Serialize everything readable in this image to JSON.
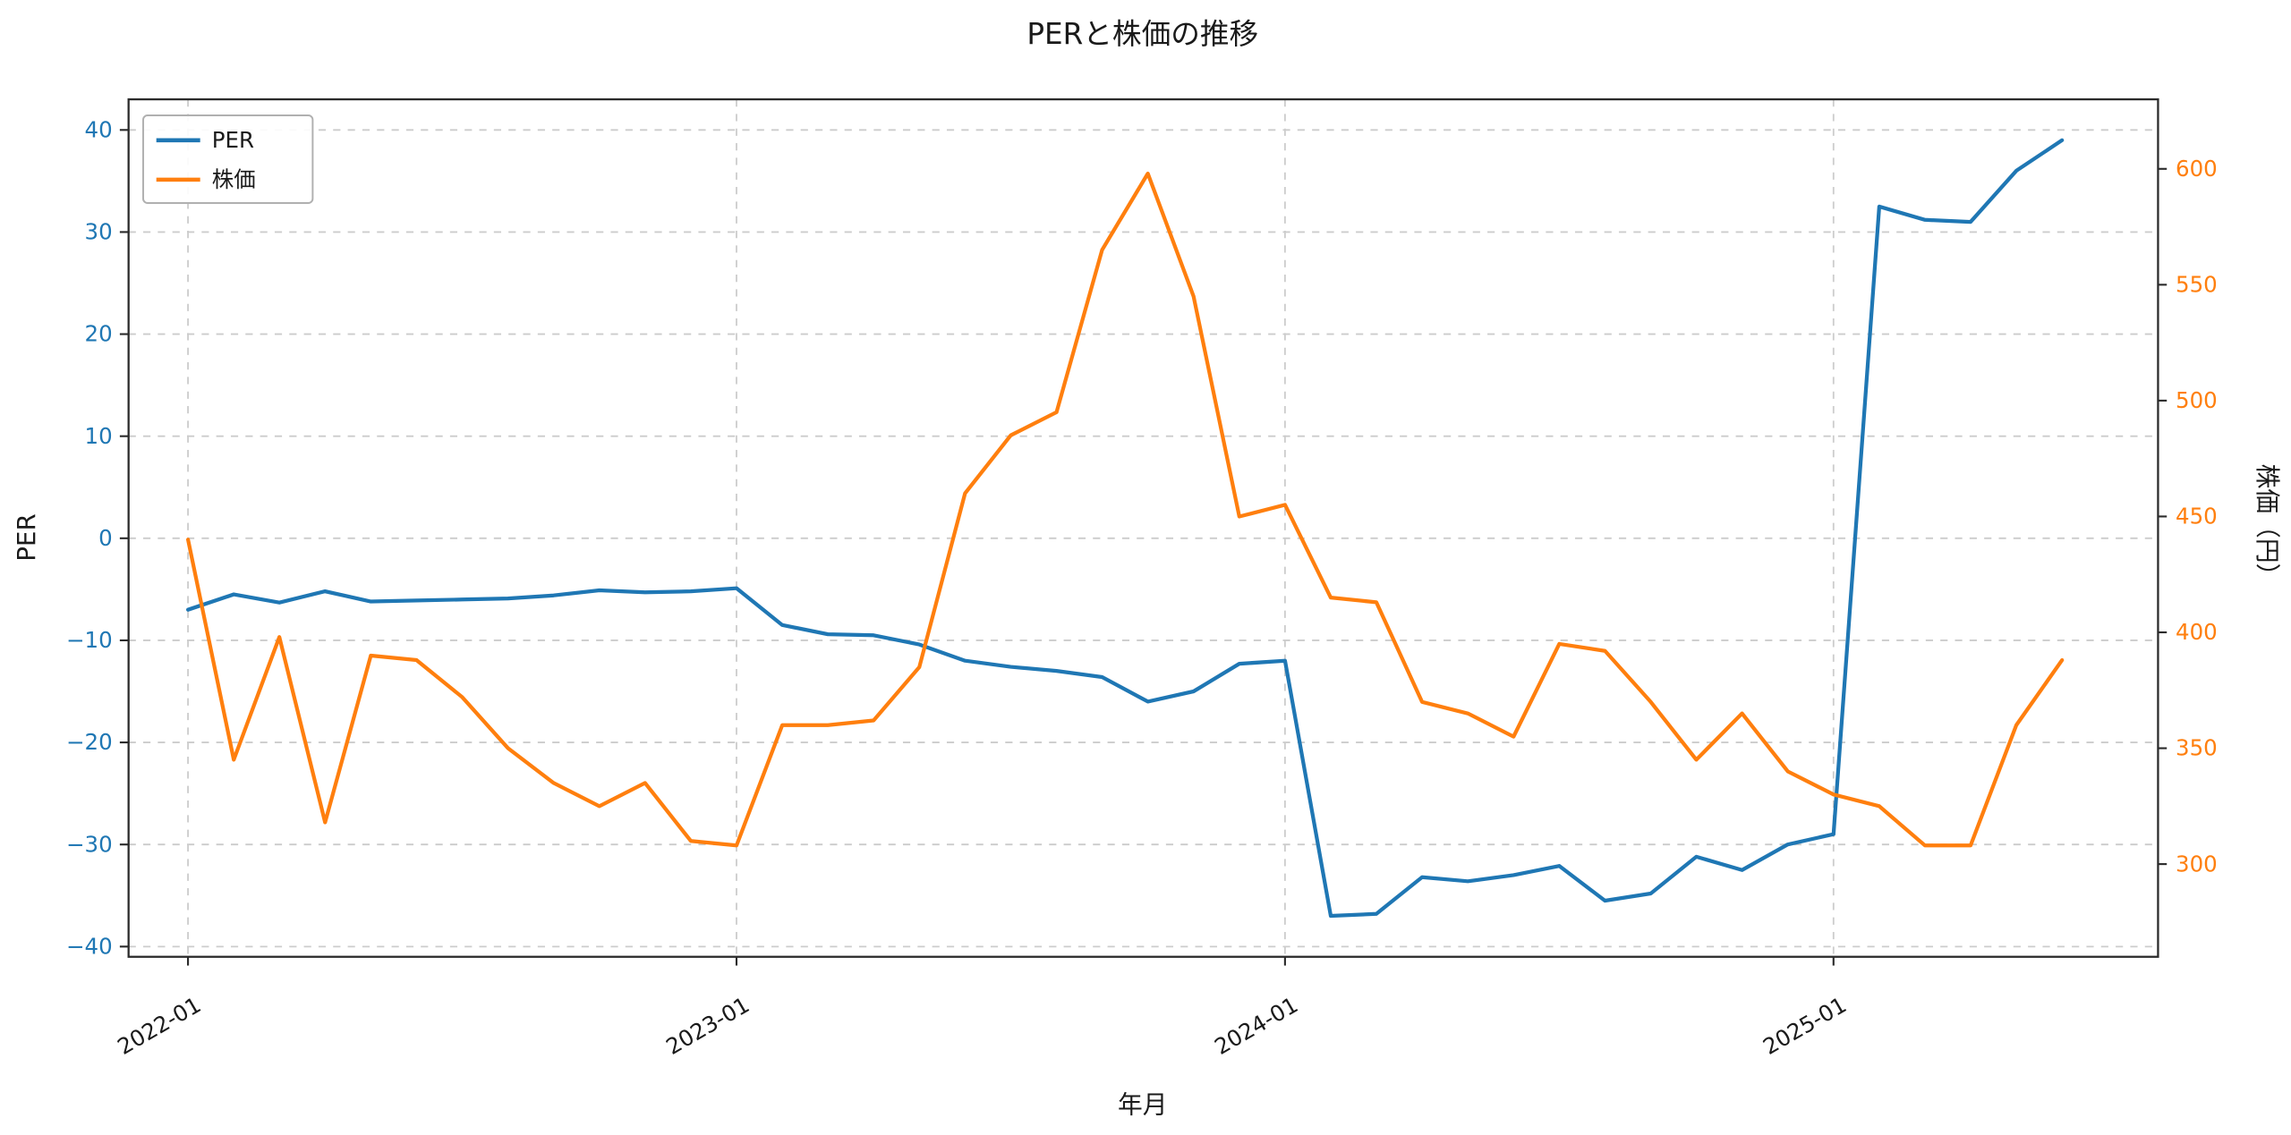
{
  "title": "PERと株価の推移",
  "xlabel": "年月",
  "ylabel_left": "PER",
  "ylabel_right": "株価（円）",
  "legend": {
    "items": [
      {
        "label": "PER",
        "color": "#1f77b4"
      },
      {
        "label": "株価",
        "color": "#ff7f0e"
      }
    ]
  },
  "colors": {
    "per": "#1f77b4",
    "stock_price": "#ff7f0e",
    "grid": "#cccccc",
    "spine": "#2b2b2b",
    "tick_label_left": "#1f77b4",
    "tick_label_right": "#ff7f0e",
    "tick_label_x": "#1a1a1a"
  },
  "chart_data": {
    "type": "line",
    "x": [
      "2022-01",
      "2022-02",
      "2022-03",
      "2022-04",
      "2022-05",
      "2022-06",
      "2022-07",
      "2022-08",
      "2022-09",
      "2022-10",
      "2022-11",
      "2022-12",
      "2023-01",
      "2023-02",
      "2023-03",
      "2023-04",
      "2023-05",
      "2023-06",
      "2023-07",
      "2023-08",
      "2023-09",
      "2023-10",
      "2023-11",
      "2023-12",
      "2024-01",
      "2024-02",
      "2024-03",
      "2024-04",
      "2024-05",
      "2024-06",
      "2024-07",
      "2024-08",
      "2024-09",
      "2024-10",
      "2024-11",
      "2024-12",
      "2025-01",
      "2025-02",
      "2025-03",
      "2025-04",
      "2025-05",
      "2025-06"
    ],
    "series": [
      {
        "id": "per",
        "name": "PER",
        "axis": "left",
        "color": "#1f77b4",
        "values": [
          -7.0,
          -5.5,
          -6.3,
          -5.2,
          -6.2,
          -6.1,
          -6.0,
          -5.9,
          -5.6,
          -5.1,
          -5.3,
          -5.2,
          -4.9,
          -8.5,
          -9.4,
          -9.5,
          -10.4,
          -12.0,
          -12.6,
          -13.0,
          -13.6,
          -16.0,
          -15.0,
          -12.3,
          -12.0,
          -37.0,
          -36.8,
          -33.2,
          -33.6,
          -33.0,
          -32.1,
          -35.5,
          -34.8,
          -31.2,
          -32.5,
          -30.0,
          -29.0,
          32.5,
          31.2,
          31.0,
          36.0,
          39.0
        ]
      },
      {
        "id": "stock-price",
        "name": "株価",
        "axis": "right",
        "color": "#ff7f0e",
        "values": [
          440,
          345,
          398,
          318,
          390,
          388,
          372,
          350,
          335,
          325,
          335,
          310,
          308,
          360,
          360,
          362,
          385,
          460,
          485,
          495,
          565,
          598,
          545,
          450,
          455,
          415,
          413,
          370,
          365,
          355,
          395,
          392,
          370,
          345,
          365,
          340,
          330,
          325,
          308,
          308,
          360,
          388
        ]
      }
    ],
    "xticks": {
      "indices": [
        0,
        12,
        24,
        36
      ],
      "labels": [
        "2022-01",
        "2023-01",
        "2024-01",
        "2025-01"
      ]
    },
    "yticks_left": [
      -40,
      -30,
      -20,
      -10,
      0,
      10,
      20,
      30,
      40
    ],
    "yticks_right": [
      300,
      350,
      400,
      450,
      500,
      550,
      600
    ],
    "ylim_left": [
      -41,
      43
    ],
    "ylim_right": [
      260,
      630
    ],
    "xlim_index": [
      -1.3,
      43.1
    ],
    "grid": true,
    "legend_position": "upper left"
  }
}
